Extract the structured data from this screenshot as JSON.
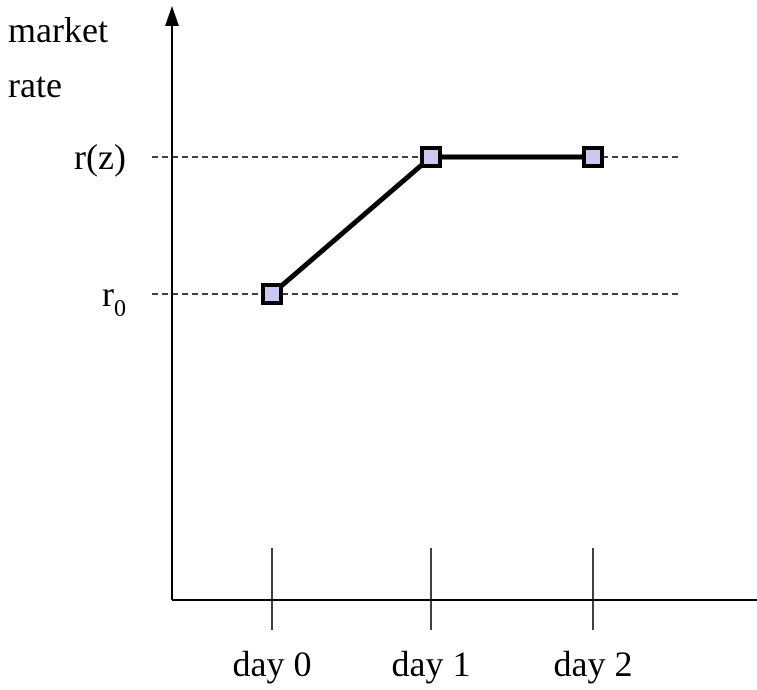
{
  "chart_data": {
    "type": "line",
    "ylabel_line1": "market",
    "ylabel_line2": "rate",
    "categories": [
      "day 0",
      "day 1",
      "day 2"
    ],
    "y_levels": [
      {
        "label_main": "r(z)",
        "label_sub": "",
        "level": "r(z)"
      },
      {
        "label_main": "r",
        "label_sub": "0",
        "level": "r0"
      }
    ],
    "series": [
      {
        "values": [
          "r0",
          "r(z)",
          "r(z)"
        ]
      }
    ],
    "marker": "square",
    "marker_fill": "#c8c8f0",
    "line_color": "#000000"
  }
}
